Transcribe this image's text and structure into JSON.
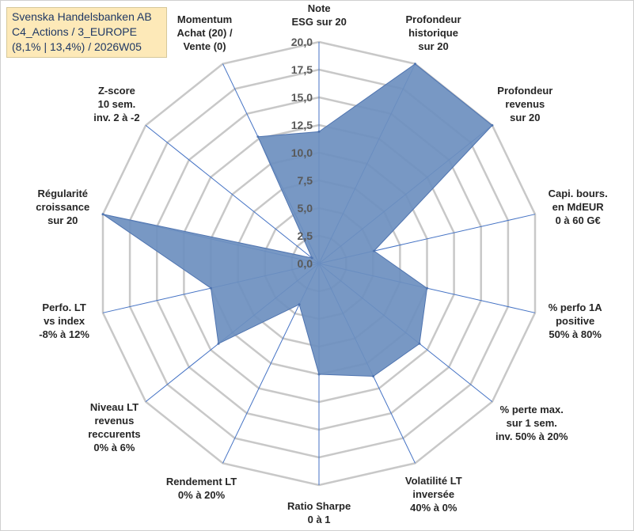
{
  "chart_data": {
    "type": "radar",
    "title_lines": [
      "Svenska Handelsbanken AB",
      "C4_Actions / 3_EUROPE",
      "(8,1% | 13,4%) / 2026W05"
    ],
    "rlim": [
      0,
      20
    ],
    "r_ticks": [
      "0,0",
      "2,5",
      "5,0",
      "7,5",
      "10,0",
      "12,5",
      "15,0",
      "17,5",
      "20,0"
    ],
    "colors": {
      "fill": "#6d8fbf",
      "edge": "#4f74b0",
      "grid": "#c8c8c8",
      "spoke": "#4472c4"
    },
    "axes": [
      {
        "label": [
          "Note",
          "ESG sur 20"
        ],
        "value": 11.9
      },
      {
        "label": [
          "Profondeur",
          "historique",
          "sur 20"
        ],
        "value": 20.0
      },
      {
        "label": [
          "Profondeur",
          "revenus",
          "sur 20"
        ],
        "value": 20.0
      },
      {
        "label": [
          "Capi. bours.",
          "en MdEUR",
          "0 à 60 G€"
        ],
        "value": 5.1
      },
      {
        "label": [
          "% perfo 1A",
          "positive",
          "50% à 80%"
        ],
        "value": 10.0
      },
      {
        "label": [
          "% perte max.",
          "sur 1 sem.",
          "inv. 50% à 20%"
        ],
        "value": 11.6
      },
      {
        "label": [
          "Volatilité LT",
          "inversée",
          "40% à 0%"
        ],
        "value": 11.3
      },
      {
        "label": [
          "Ratio Sharpe",
          "0 à 1"
        ],
        "value": 10.0
      },
      {
        "label": [
          "Rendement LT",
          "0% à 20%"
        ],
        "value": 4.1
      },
      {
        "label": [
          "Niveau LT",
          "revenus",
          "reccurents",
          "0% à 6%"
        ],
        "value": 11.6
      },
      {
        "label": [
          "Perfo. LT",
          "vs index",
          "-8% à 12%"
        ],
        "value": 10.0
      },
      {
        "label": [
          "Régularité",
          "croissance",
          "sur 20"
        ],
        "value": 20.0
      },
      {
        "label": [
          "Z-score",
          "10 sem.",
          "inv. 2 à -2"
        ],
        "value": 0.8
      },
      {
        "label": [
          "Momentum",
          "Achat (20) /",
          "Vente (0)"
        ],
        "value": 12.7
      }
    ]
  }
}
